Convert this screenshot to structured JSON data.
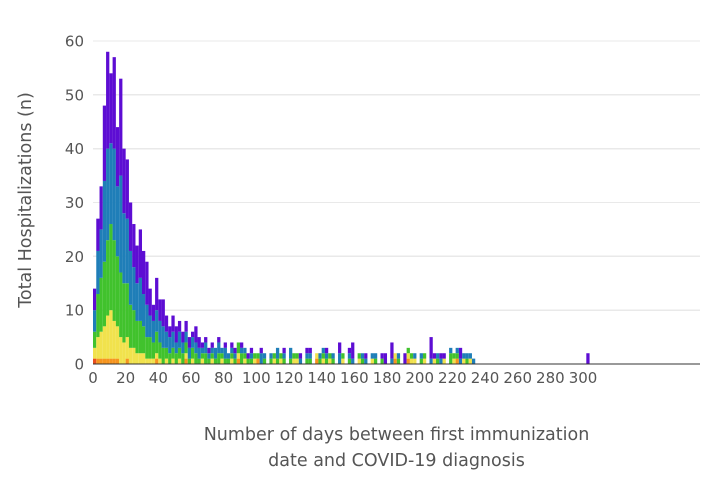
{
  "figure": {
    "background": "#ffffff",
    "gridline_color": "#e9e9e9",
    "axis_line_color": "#333333",
    "text_color": "#555555"
  },
  "chart_data": {
    "type": "bar",
    "subtype": "stacked-histogram",
    "title": "",
    "xlabel": "Number of days between first immunization\ndate and COVID-19 diagnosis",
    "ylabel": "Total Hospitalizations (n)",
    "xlim": [
      0,
      371.6
    ],
    "ylim": [
      0,
      60
    ],
    "grid": "horizontal",
    "legend": "none",
    "x_ticks": [
      0,
      20,
      40,
      60,
      80,
      100,
      120,
      140,
      160,
      180,
      200,
      220,
      240,
      260,
      280,
      300
    ],
    "y_ticks": [
      0,
      10,
      20,
      30,
      40,
      50,
      60
    ],
    "bin_width_days": 2,
    "series_keys": [
      "red",
      "orange",
      "yellow",
      "green",
      "blue",
      "purple"
    ],
    "colors": {
      "red": "#e94e1e",
      "orange": "#f6941e",
      "yellow": "#f1e24d",
      "green": "#41c22d",
      "blue": "#1f7eb8",
      "purple": "#5d0dd3"
    },
    "bin_format": [
      "x_start_day",
      "red",
      "orange",
      "yellow",
      "green",
      "blue",
      "purple"
    ],
    "bins": [
      [
        0,
        1,
        0,
        2,
        3,
        4,
        4
      ],
      [
        2,
        0,
        1,
        4,
        8,
        8,
        6
      ],
      [
        4,
        0,
        1,
        5,
        10,
        9,
        8
      ],
      [
        6,
        0,
        1,
        6,
        12,
        15,
        14
      ],
      [
        8,
        0,
        1,
        8,
        14,
        17,
        18
      ],
      [
        10,
        0,
        1,
        9,
        16,
        15,
        13
      ],
      [
        12,
        0,
        1,
        7,
        15,
        17,
        17
      ],
      [
        14,
        0,
        1,
        6,
        13,
        13,
        11
      ],
      [
        16,
        0,
        0,
        5,
        12,
        18,
        18
      ],
      [
        18,
        0,
        0,
        4,
        11,
        13,
        12
      ],
      [
        20,
        0,
        1,
        4,
        10,
        12,
        11
      ],
      [
        22,
        0,
        0,
        3,
        8,
        10,
        9
      ],
      [
        24,
        0,
        0,
        3,
        7,
        8,
        8
      ],
      [
        26,
        0,
        0,
        2,
        6,
        7,
        7
      ],
      [
        28,
        0,
        0,
        2,
        6,
        8,
        9
      ],
      [
        30,
        0,
        0,
        2,
        5,
        6,
        8
      ],
      [
        32,
        0,
        0,
        1,
        4,
        6,
        8
      ],
      [
        34,
        0,
        0,
        1,
        4,
        4,
        5
      ],
      [
        36,
        0,
        0,
        1,
        3,
        4,
        3
      ],
      [
        38,
        0,
        1,
        1,
        4,
        4,
        6
      ],
      [
        40,
        0,
        0,
        1,
        3,
        4,
        4
      ],
      [
        42,
        0,
        0,
        0,
        3,
        4,
        5
      ],
      [
        44,
        0,
        0,
        1,
        2,
        3,
        3
      ],
      [
        46,
        0,
        0,
        0,
        2,
        3,
        2
      ],
      [
        48,
        0,
        0,
        1,
        2,
        3,
        3
      ],
      [
        50,
        0,
        0,
        0,
        2,
        2,
        3
      ],
      [
        52,
        0,
        0,
        1,
        2,
        3,
        2
      ],
      [
        54,
        0,
        0,
        0,
        2,
        2,
        2
      ],
      [
        56,
        0,
        1,
        1,
        2,
        2,
        2
      ],
      [
        58,
        0,
        0,
        0,
        1,
        2,
        2
      ],
      [
        60,
        0,
        0,
        1,
        2,
        2,
        1
      ],
      [
        62,
        0,
        0,
        0,
        2,
        2,
        3
      ],
      [
        64,
        0,
        0,
        0,
        1,
        2,
        2
      ],
      [
        66,
        0,
        0,
        1,
        1,
        1,
        1
      ],
      [
        68,
        0,
        0,
        0,
        2,
        2,
        1
      ],
      [
        70,
        0,
        0,
        0,
        1,
        1,
        1
      ],
      [
        72,
        0,
        0,
        1,
        1,
        1,
        1
      ],
      [
        74,
        0,
        0,
        0,
        1,
        2,
        0
      ],
      [
        76,
        0,
        0,
        0,
        2,
        2,
        1
      ],
      [
        78,
        0,
        0,
        1,
        1,
        1,
        0
      ],
      [
        80,
        0,
        0,
        0,
        1,
        2,
        1
      ],
      [
        82,
        0,
        0,
        0,
        1,
        1,
        0
      ],
      [
        84,
        0,
        0,
        1,
        1,
        1,
        1
      ],
      [
        86,
        0,
        0,
        0,
        1,
        1,
        1
      ],
      [
        88,
        0,
        1,
        1,
        2,
        0,
        0
      ],
      [
        90,
        0,
        0,
        0,
        2,
        1,
        1
      ],
      [
        92,
        0,
        0,
        1,
        1,
        1,
        0
      ],
      [
        94,
        0,
        0,
        0,
        1,
        0,
        1
      ],
      [
        96,
        0,
        0,
        0,
        1,
        1,
        1
      ],
      [
        98,
        0,
        0,
        1,
        1,
        0,
        0
      ],
      [
        100,
        0,
        1,
        0,
        1,
        0,
        0
      ],
      [
        102,
        0,
        0,
        0,
        0,
        2,
        1
      ],
      [
        104,
        0,
        0,
        0,
        1,
        1,
        0
      ],
      [
        108,
        0,
        0,
        0,
        1,
        1,
        0
      ],
      [
        110,
        0,
        0,
        1,
        1,
        0,
        0
      ],
      [
        112,
        0,
        0,
        0,
        1,
        2,
        0
      ],
      [
        114,
        0,
        0,
        1,
        1,
        0,
        0
      ],
      [
        116,
        0,
        0,
        0,
        1,
        1,
        1
      ],
      [
        120,
        0,
        0,
        0,
        1,
        2,
        0
      ],
      [
        122,
        0,
        0,
        1,
        1,
        0,
        0
      ],
      [
        124,
        0,
        0,
        1,
        1,
        0,
        0
      ],
      [
        126,
        0,
        0,
        0,
        0,
        1,
        1
      ],
      [
        130,
        0,
        0,
        0,
        1,
        1,
        1
      ],
      [
        132,
        0,
        0,
        0,
        1,
        1,
        1
      ],
      [
        136,
        0,
        1,
        1,
        0,
        0,
        0
      ],
      [
        138,
        0,
        0,
        0,
        1,
        1,
        0
      ],
      [
        140,
        0,
        0,
        1,
        1,
        1,
        0
      ],
      [
        142,
        0,
        0,
        0,
        1,
        1,
        1
      ],
      [
        144,
        0,
        0,
        1,
        1,
        0,
        0
      ],
      [
        146,
        0,
        0,
        0,
        1,
        1,
        0
      ],
      [
        150,
        0,
        0,
        0,
        0,
        2,
        2
      ],
      [
        152,
        0,
        0,
        1,
        1,
        0,
        0
      ],
      [
        156,
        0,
        0,
        0,
        1,
        1,
        1
      ],
      [
        158,
        0,
        0,
        0,
        0,
        1,
        3
      ],
      [
        162,
        0,
        0,
        1,
        1,
        0,
        0
      ],
      [
        164,
        0,
        0,
        0,
        1,
        1,
        0
      ],
      [
        166,
        0,
        0,
        0,
        0,
        1,
        1
      ],
      [
        170,
        0,
        0,
        1,
        0,
        1,
        0
      ],
      [
        172,
        0,
        0,
        0,
        1,
        1,
        0
      ],
      [
        176,
        0,
        0,
        0,
        1,
        0,
        1
      ],
      [
        178,
        0,
        0,
        0,
        0,
        0,
        2
      ],
      [
        182,
        0,
        0,
        0,
        0,
        1,
        3
      ],
      [
        184,
        0,
        1,
        1,
        0,
        0,
        0
      ],
      [
        186,
        0,
        0,
        0,
        1,
        1,
        0
      ],
      [
        190,
        0,
        0,
        0,
        0,
        0,
        2
      ],
      [
        192,
        0,
        1,
        1,
        1,
        0,
        0
      ],
      [
        194,
        0,
        0,
        1,
        1,
        0,
        0
      ],
      [
        196,
        0,
        0,
        1,
        0,
        1,
        0
      ],
      [
        200,
        0,
        0,
        0,
        1,
        1,
        0
      ],
      [
        202,
        0,
        0,
        1,
        1,
        0,
        0
      ],
      [
        206,
        0,
        0,
        0,
        0,
        1,
        4
      ],
      [
        208,
        0,
        0,
        1,
        0,
        0,
        1
      ],
      [
        210,
        0,
        0,
        0,
        1,
        1,
        0
      ],
      [
        212,
        0,
        0,
        0,
        0,
        1,
        1
      ],
      [
        214,
        0,
        0,
        1,
        0,
        0,
        1
      ],
      [
        218,
        0,
        0,
        0,
        2,
        1,
        0
      ],
      [
        220,
        0,
        0,
        1,
        1,
        0,
        0
      ],
      [
        222,
        0,
        1,
        0,
        1,
        1,
        0
      ],
      [
        224,
        0,
        0,
        0,
        0,
        1,
        2
      ],
      [
        226,
        0,
        0,
        1,
        0,
        1,
        0
      ],
      [
        228,
        0,
        0,
        0,
        1,
        1,
        0
      ],
      [
        230,
        0,
        0,
        1,
        0,
        1,
        0
      ],
      [
        232,
        0,
        0,
        0,
        0,
        1,
        0
      ],
      [
        302,
        0,
        0,
        0,
        0,
        0,
        2
      ]
    ]
  }
}
